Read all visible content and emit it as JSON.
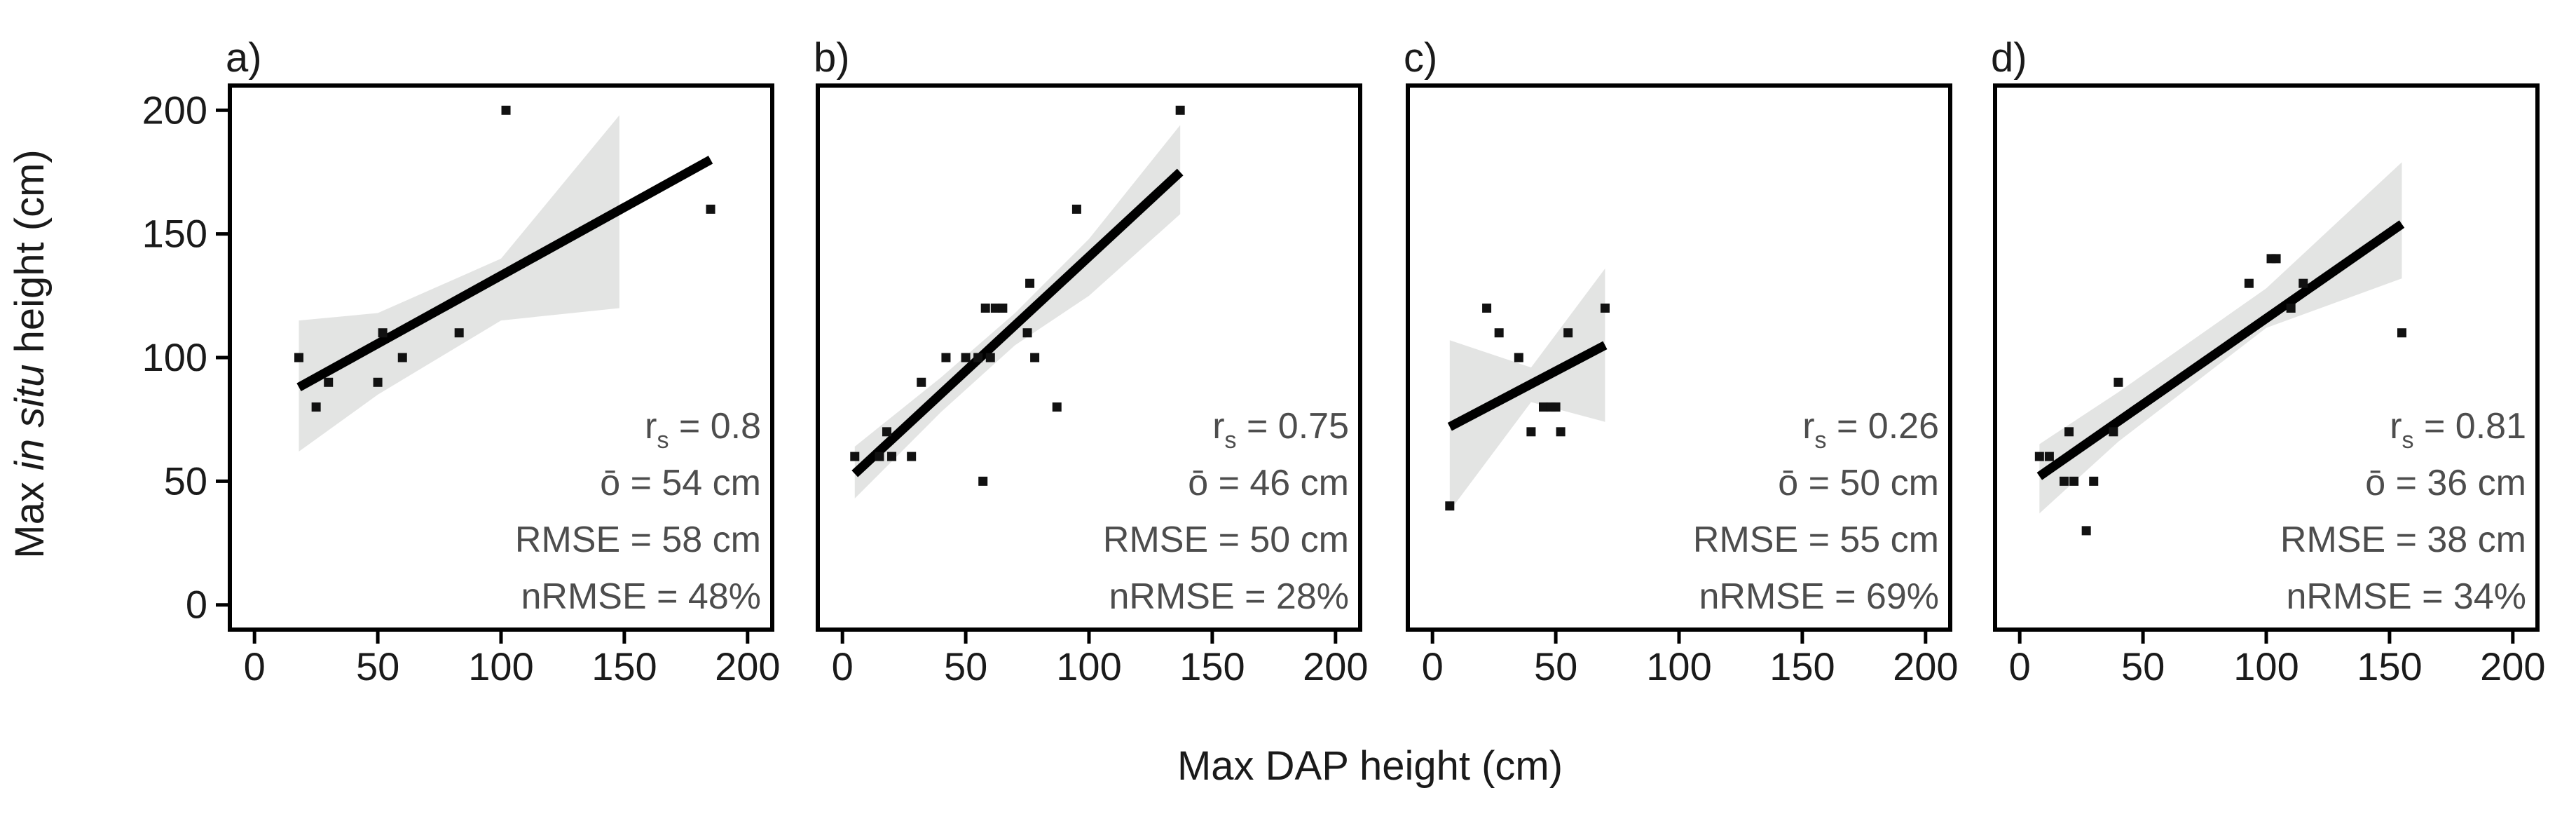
{
  "figure": {
    "ylabel_pre": "Max ",
    "ylabel_italic": "in situ",
    "ylabel_post": " height (cm)",
    "xlabel": "Max DAP height (cm)",
    "axis_ticks": [
      "0",
      "50",
      "100",
      "150",
      "200"
    ]
  },
  "chart_data": [
    {
      "type": "scatter",
      "label": "a)",
      "xlim": [
        -10,
        210
      ],
      "ylim": [
        -10,
        210
      ],
      "xticks": [
        0,
        50,
        100,
        150,
        200
      ],
      "yticks": [
        0,
        50,
        100,
        150,
        200
      ],
      "points": [
        [
          18,
          100
        ],
        [
          25,
          80
        ],
        [
          30,
          90
        ],
        [
          50,
          90
        ],
        [
          52,
          110
        ],
        [
          60,
          100
        ],
        [
          83,
          110
        ],
        [
          102,
          200
        ],
        [
          185,
          160
        ]
      ],
      "fit": {
        "x0": 18,
        "x1": 185,
        "y0": 88,
        "y1": 180
      },
      "ci_band": {
        "x": [
          18,
          50,
          100,
          148
        ],
        "upper": [
          115,
          118,
          140,
          198
        ],
        "lower": [
          62,
          85,
          115,
          120
        ]
      },
      "stats": {
        "rs_label": "r",
        "rs_sub": "s",
        "rs_value": " = 0.8",
        "obar": "ō = 54 cm",
        "rmse": "RMSE = 58 cm",
        "nrmse": "nRMSE = 48%"
      }
    },
    {
      "type": "scatter",
      "label": "b)",
      "xlim": [
        -10,
        210
      ],
      "ylim": [
        -10,
        210
      ],
      "xticks": [
        0,
        50,
        100,
        150,
        200
      ],
      "yticks": [
        0,
        50,
        100,
        150,
        200
      ],
      "points": [
        [
          5,
          60
        ],
        [
          15,
          60
        ],
        [
          18,
          70
        ],
        [
          20,
          60
        ],
        [
          28,
          60
        ],
        [
          32,
          90
        ],
        [
          42,
          100
        ],
        [
          50,
          100
        ],
        [
          55,
          100
        ],
        [
          57,
          50
        ],
        [
          58,
          120
        ],
        [
          60,
          100
        ],
        [
          62,
          120
        ],
        [
          65,
          120
        ],
        [
          75,
          110
        ],
        [
          76,
          130
        ],
        [
          78,
          100
        ],
        [
          87,
          80
        ],
        [
          95,
          160
        ],
        [
          137,
          200
        ]
      ],
      "fit": {
        "x0": 5,
        "x1": 137,
        "y0": 53,
        "y1": 175
      },
      "ci_band": {
        "x": [
          5,
          40,
          70,
          100,
          137
        ],
        "upper": [
          64,
          92,
          118,
          148,
          194
        ],
        "lower": [
          43,
          78,
          105,
          125,
          158
        ]
      },
      "stats": {
        "rs_label": "r",
        "rs_sub": "s",
        "rs_value": " = 0.75",
        "obar": "ō = 46 cm",
        "rmse": "RMSE = 50 cm",
        "nrmse": "nRMSE = 28%"
      }
    },
    {
      "type": "scatter",
      "label": "c)",
      "xlim": [
        -10,
        210
      ],
      "ylim": [
        -10,
        210
      ],
      "xticks": [
        0,
        50,
        100,
        150,
        200
      ],
      "yticks": [
        0,
        50,
        100,
        150,
        200
      ],
      "points": [
        [
          7,
          40
        ],
        [
          22,
          120
        ],
        [
          27,
          110
        ],
        [
          35,
          100
        ],
        [
          40,
          70
        ],
        [
          45,
          80
        ],
        [
          48,
          80
        ],
        [
          50,
          80
        ],
        [
          52,
          70
        ],
        [
          55,
          110
        ],
        [
          70,
          120
        ]
      ],
      "fit": {
        "x0": 7,
        "x1": 70,
        "y0": 72,
        "y1": 105
      },
      "ci_band": {
        "x": [
          7,
          40,
          70
        ],
        "upper": [
          107,
          96,
          136
        ],
        "lower": [
          38,
          82,
          74
        ]
      },
      "stats": {
        "rs_label": "r",
        "rs_sub": "s",
        "rs_value": " = 0.26",
        "obar": "ō = 50 cm",
        "rmse": "RMSE = 55 cm",
        "nrmse": "nRMSE = 69%"
      }
    },
    {
      "type": "scatter",
      "label": "d)",
      "xlim": [
        -10,
        210
      ],
      "ylim": [
        -10,
        210
      ],
      "xticks": [
        0,
        50,
        100,
        150,
        200
      ],
      "yticks": [
        0,
        50,
        100,
        150,
        200
      ],
      "points": [
        [
          8,
          60
        ],
        [
          12,
          60
        ],
        [
          18,
          50
        ],
        [
          20,
          70
        ],
        [
          22,
          50
        ],
        [
          27,
          30
        ],
        [
          30,
          50
        ],
        [
          38,
          70
        ],
        [
          40,
          90
        ],
        [
          93,
          130
        ],
        [
          102,
          140
        ],
        [
          104,
          140
        ],
        [
          110,
          120
        ],
        [
          115,
          130
        ],
        [
          155,
          110
        ]
      ],
      "fit": {
        "x0": 8,
        "x1": 155,
        "y0": 52,
        "y1": 154
      },
      "ci_band": {
        "x": [
          8,
          40,
          100,
          155
        ],
        "upper": [
          65,
          86,
          128,
          179
        ],
        "lower": [
          37,
          66,
          112,
          132
        ]
      },
      "stats": {
        "rs_label": "r",
        "rs_sub": "s",
        "rs_value": " = 0.81",
        "obar": "ō = 36 cm",
        "rmse": "RMSE = 38 cm",
        "nrmse": "nRMSE = 34%"
      }
    }
  ]
}
